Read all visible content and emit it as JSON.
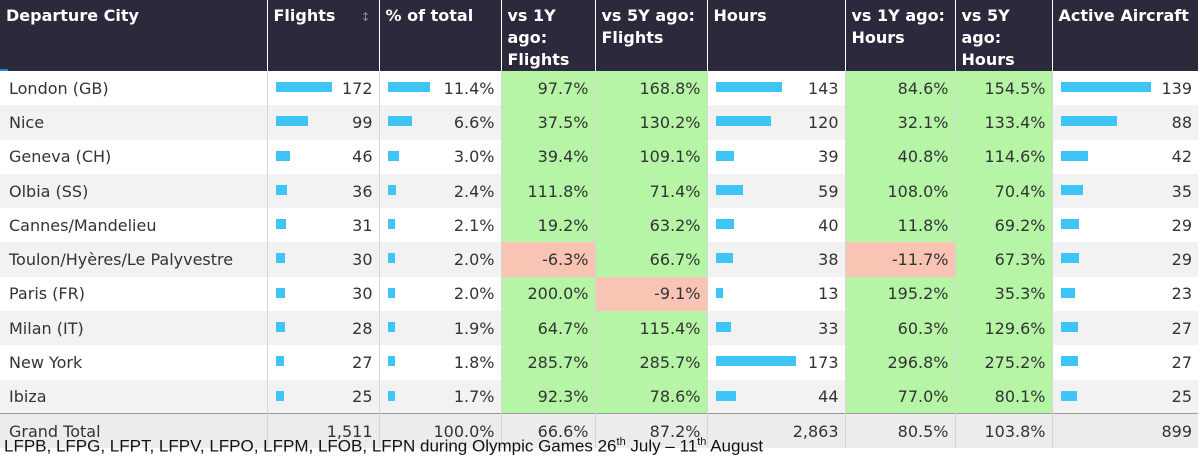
{
  "chart_data": {
    "type": "table",
    "columns": [
      "Departure City",
      "Flights",
      "% of total",
      "vs 1Y ago:\nFlights",
      "vs 5Y ago:\nFlights",
      "Hours",
      "vs 1Y ago:\nHours",
      "vs 5Y ago:\nHours",
      "Active Aircraft"
    ],
    "rows": [
      {
        "city": "London (GB)",
        "flights": 172,
        "pct_total": "11.4%",
        "vs1y_flights": "97.7%",
        "vs5y_flights": "168.8%",
        "hours": 143,
        "vs1y_hours": "84.6%",
        "vs5y_hours": "154.5%",
        "aircraft": 139
      },
      {
        "city": "Nice",
        "flights": 99,
        "pct_total": "6.6%",
        "vs1y_flights": "37.5%",
        "vs5y_flights": "130.2%",
        "hours": 120,
        "vs1y_hours": "32.1%",
        "vs5y_hours": "133.4%",
        "aircraft": 88
      },
      {
        "city": "Geneva (CH)",
        "flights": 46,
        "pct_total": "3.0%",
        "vs1y_flights": "39.4%",
        "vs5y_flights": "109.1%",
        "hours": 39,
        "vs1y_hours": "40.8%",
        "vs5y_hours": "114.6%",
        "aircraft": 42
      },
      {
        "city": "Olbia (SS)",
        "flights": 36,
        "pct_total": "2.4%",
        "vs1y_flights": "111.8%",
        "vs5y_flights": "71.4%",
        "hours": 59,
        "vs1y_hours": "108.0%",
        "vs5y_hours": "70.4%",
        "aircraft": 35
      },
      {
        "city": "Cannes/Mandelieu",
        "flights": 31,
        "pct_total": "2.1%",
        "vs1y_flights": "19.2%",
        "vs5y_flights": "63.2%",
        "hours": 40,
        "vs1y_hours": "11.8%",
        "vs5y_hours": "69.2%",
        "aircraft": 29
      },
      {
        "city": "Toulon/Hyères/Le Palyvestre",
        "flights": 30,
        "pct_total": "2.0%",
        "vs1y_flights": "-6.3%",
        "vs5y_flights": "66.7%",
        "hours": 38,
        "vs1y_hours": "-11.7%",
        "vs5y_hours": "67.3%",
        "aircraft": 29
      },
      {
        "city": "Paris (FR)",
        "flights": 30,
        "pct_total": "2.0%",
        "vs1y_flights": "200.0%",
        "vs5y_flights": "-9.1%",
        "hours": 13,
        "vs1y_hours": "195.2%",
        "vs5y_hours": "35.3%",
        "aircraft": 23
      },
      {
        "city": "Milan (IT)",
        "flights": 28,
        "pct_total": "1.9%",
        "vs1y_flights": "64.7%",
        "vs5y_flights": "115.4%",
        "hours": 33,
        "vs1y_hours": "60.3%",
        "vs5y_hours": "129.6%",
        "aircraft": 27
      },
      {
        "city": "New York",
        "flights": 27,
        "pct_total": "1.8%",
        "vs1y_flights": "285.7%",
        "vs5y_flights": "285.7%",
        "hours": 173,
        "vs1y_hours": "296.8%",
        "vs5y_hours": "275.2%",
        "aircraft": 27
      },
      {
        "city": "Ibiza",
        "flights": 25,
        "pct_total": "1.7%",
        "vs1y_flights": "92.3%",
        "vs5y_flights": "78.6%",
        "hours": 44,
        "vs1y_hours": "77.0%",
        "vs5y_hours": "80.1%",
        "aircraft": 25
      }
    ],
    "total": {
      "city": "Grand Total",
      "flights": "1,511",
      "pct_total": "100.0%",
      "vs1y_flights": "66.6%",
      "vs5y_flights": "87.2%",
      "hours": "2,863",
      "vs1y_hours": "80.5%",
      "vs5y_hours": "103.8%",
      "aircraft": "899"
    },
    "colors": {
      "header_bg": "#2a2a3c",
      "bar": "#3ec4f5",
      "positive": "#b6f5a6",
      "negative": "#f9c4b4"
    }
  },
  "footnote": {
    "part1": "LFPB, LFPG, LFPT, LFPV, LFPO, LFPM, LFOB, LFPN during Olympic Games 26",
    "sup1": "th",
    "part2": " July – 11",
    "sup2": "th",
    "part3": " August"
  },
  "sort_icon": "sort-descending-icon"
}
